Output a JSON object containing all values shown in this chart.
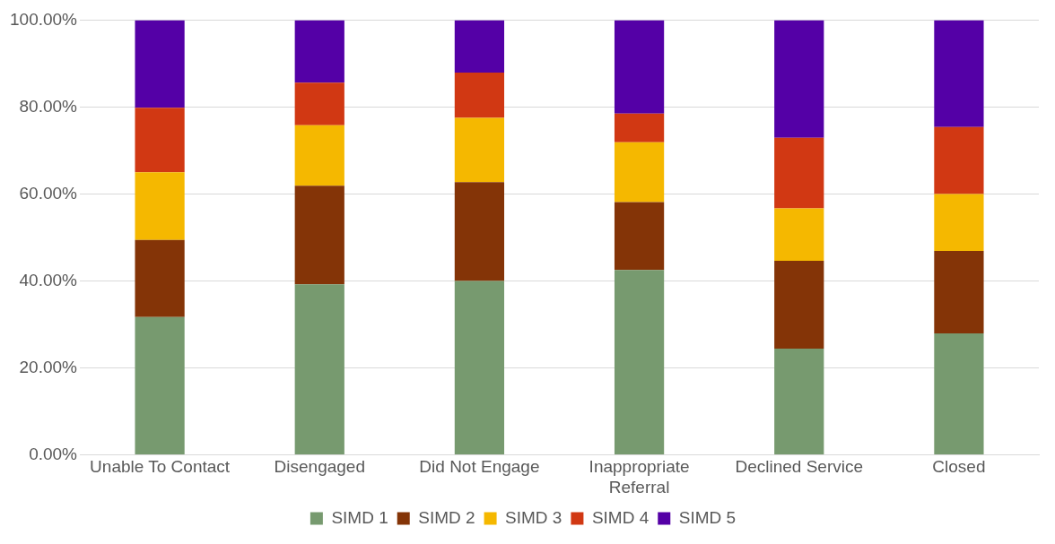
{
  "chart_data": {
    "type": "bar",
    "stacked": true,
    "categories": [
      "Unable To Contact",
      "Disengaged",
      "Did Not Engage",
      "Inappropriate Referral",
      "Declined Service",
      "Closed"
    ],
    "series": [
      {
        "name": "SIMD 1",
        "color": "#779a6f",
        "values": [
          31.7,
          39.2,
          40.0,
          42.5,
          24.4,
          27.9
        ]
      },
      {
        "name": "SIMD 2",
        "color": "#843407",
        "values": [
          17.7,
          22.7,
          22.7,
          15.6,
          20.2,
          19.0
        ]
      },
      {
        "name": "SIMD 3",
        "color": "#f5b800",
        "values": [
          15.6,
          13.9,
          14.8,
          13.8,
          12.1,
          13.1
        ]
      },
      {
        "name": "SIMD 4",
        "color": "#d13813",
        "values": [
          14.8,
          9.8,
          10.4,
          6.6,
          16.2,
          15.4
        ]
      },
      {
        "name": "SIMD 5",
        "color": "#5400a6",
        "values": [
          20.2,
          14.4,
          12.1,
          21.5,
          27.1,
          24.6
        ]
      }
    ],
    "ylim": [
      0,
      100
    ],
    "yticks": [
      {
        "value": 0,
        "label": "0.00%"
      },
      {
        "value": 20,
        "label": "20.00%"
      },
      {
        "value": 40,
        "label": "40.00%"
      },
      {
        "value": 60,
        "label": "60.00%"
      },
      {
        "value": 80,
        "label": "80.00%"
      },
      {
        "value": 100,
        "label": "100.00%"
      }
    ],
    "grid": "y",
    "legend": "bottom"
  }
}
